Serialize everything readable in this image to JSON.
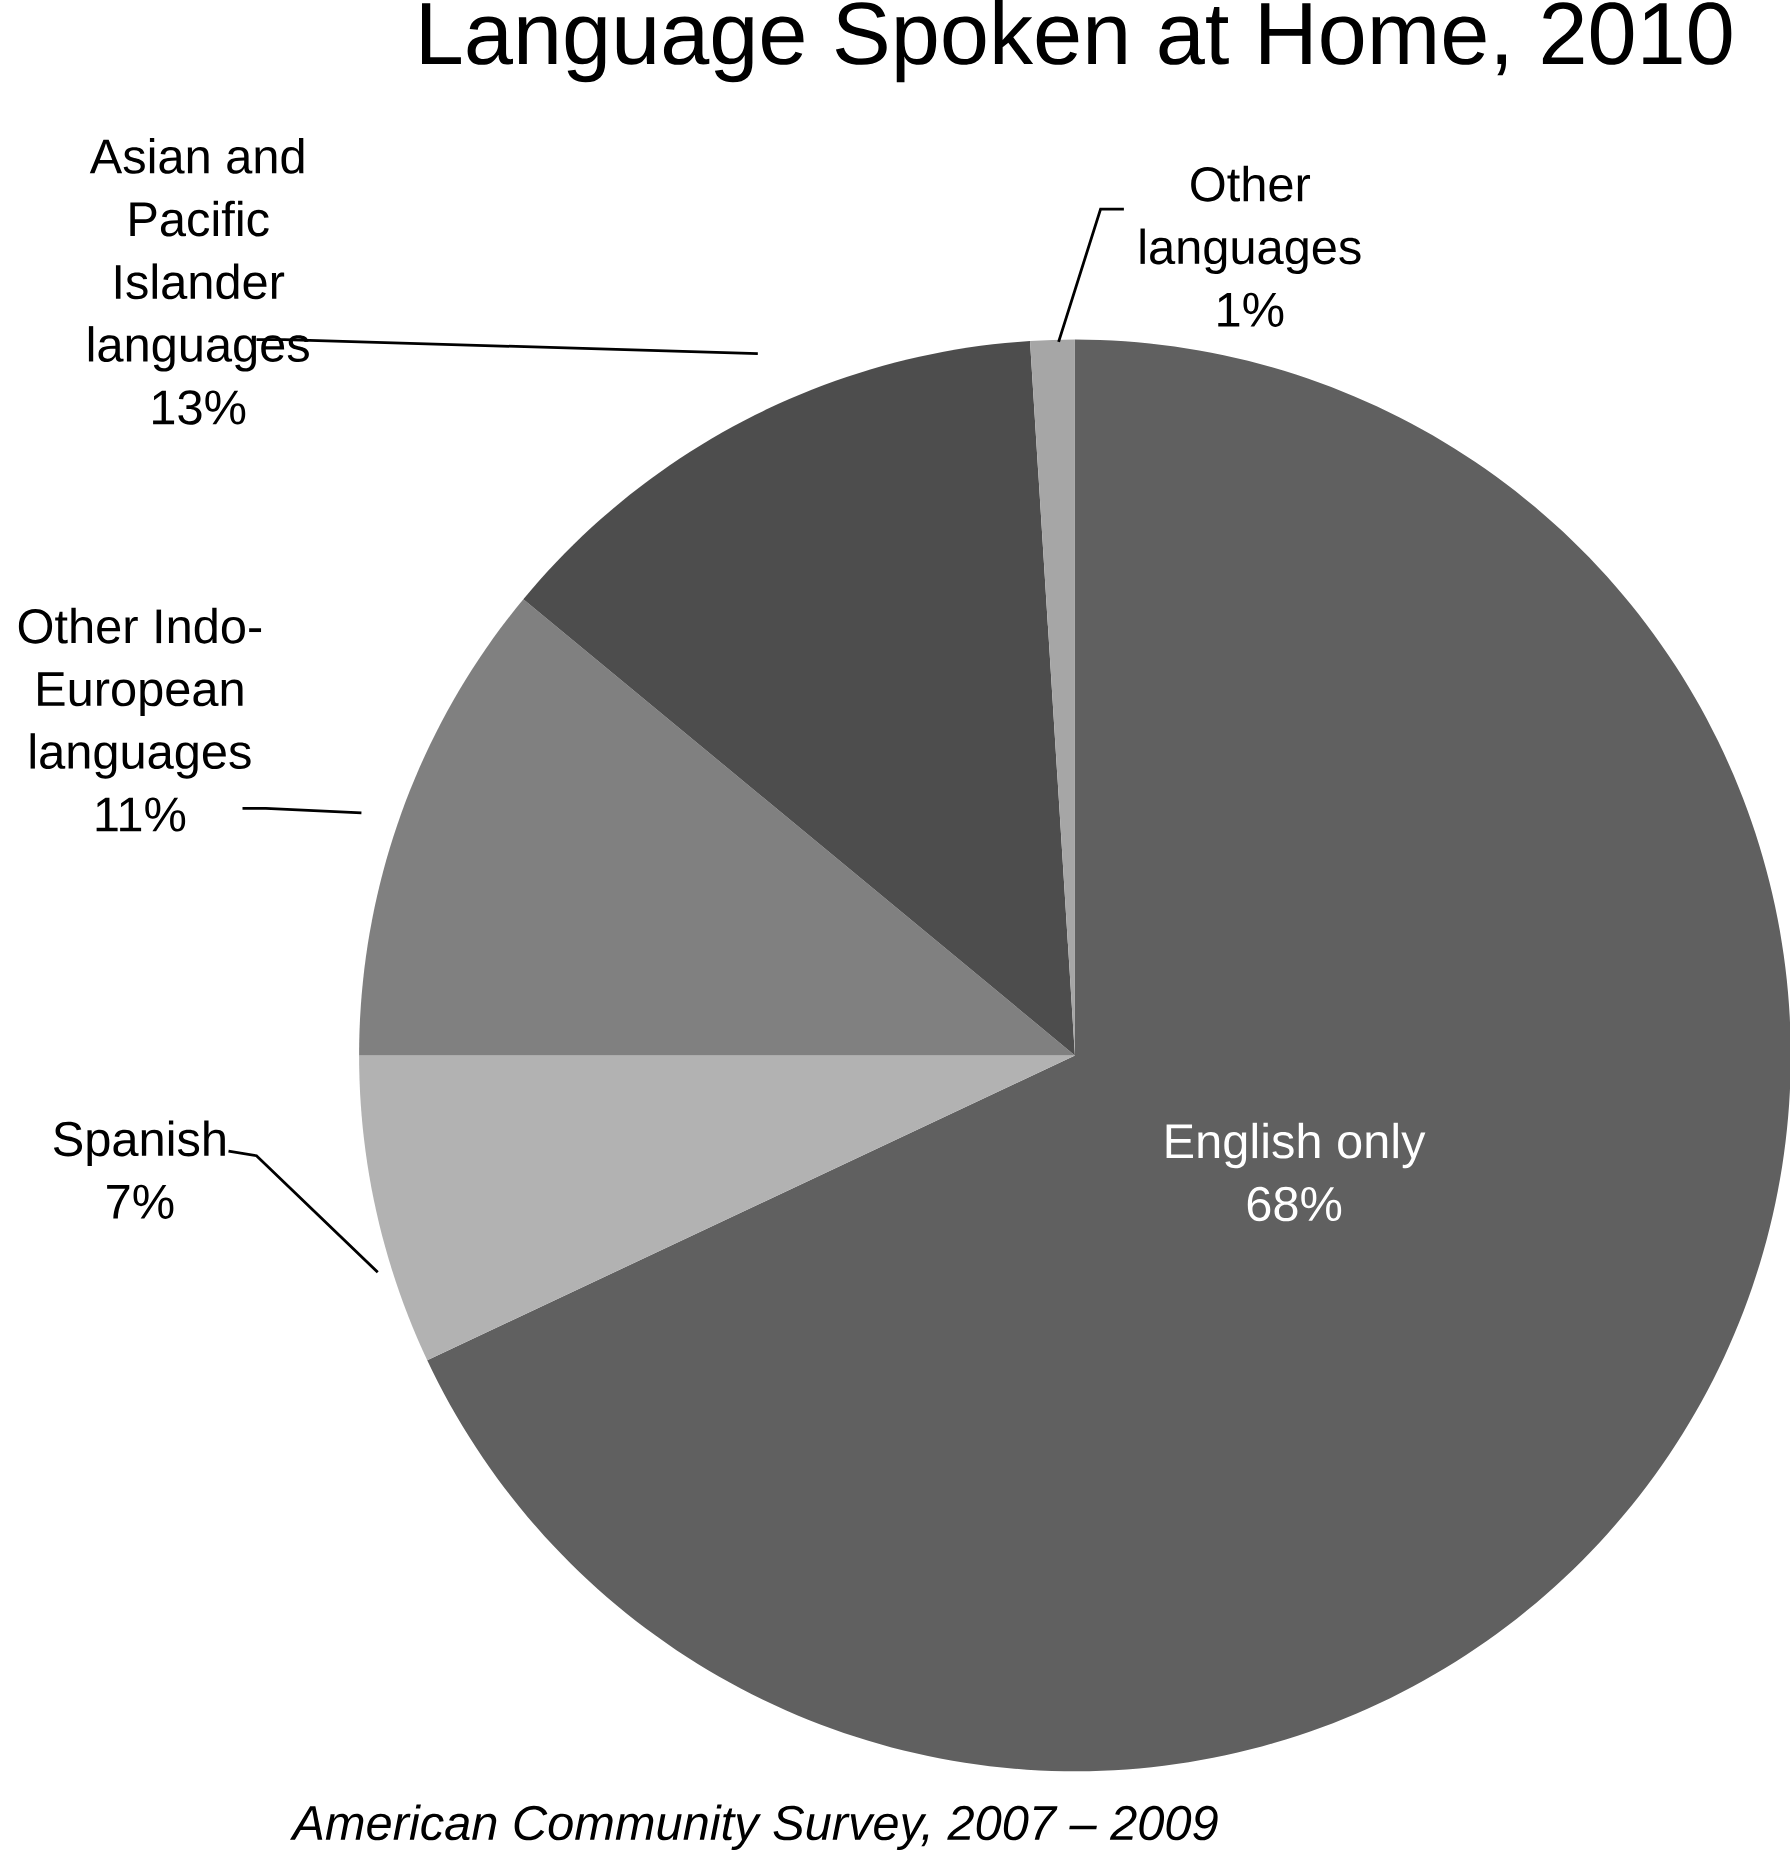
{
  "chart_data": {
    "type": "pie",
    "title": "Language Spoken at Home, 2010",
    "categories": [
      "English only",
      "Spanish",
      "Other Indo-European languages",
      "Asian and Pacific Islander languages",
      "Other languages"
    ],
    "values": [
      68,
      7,
      11,
      13,
      1
    ],
    "value_labels": [
      "68%",
      "7%",
      "11%",
      "13%",
      "1%"
    ],
    "colors": [
      "#606060",
      "#b2b2b2",
      "#808080",
      "#4d4d4d",
      "#a6a6a6"
    ],
    "annotations": [
      "American Community Survey, 2007 – 2009"
    ]
  }
}
